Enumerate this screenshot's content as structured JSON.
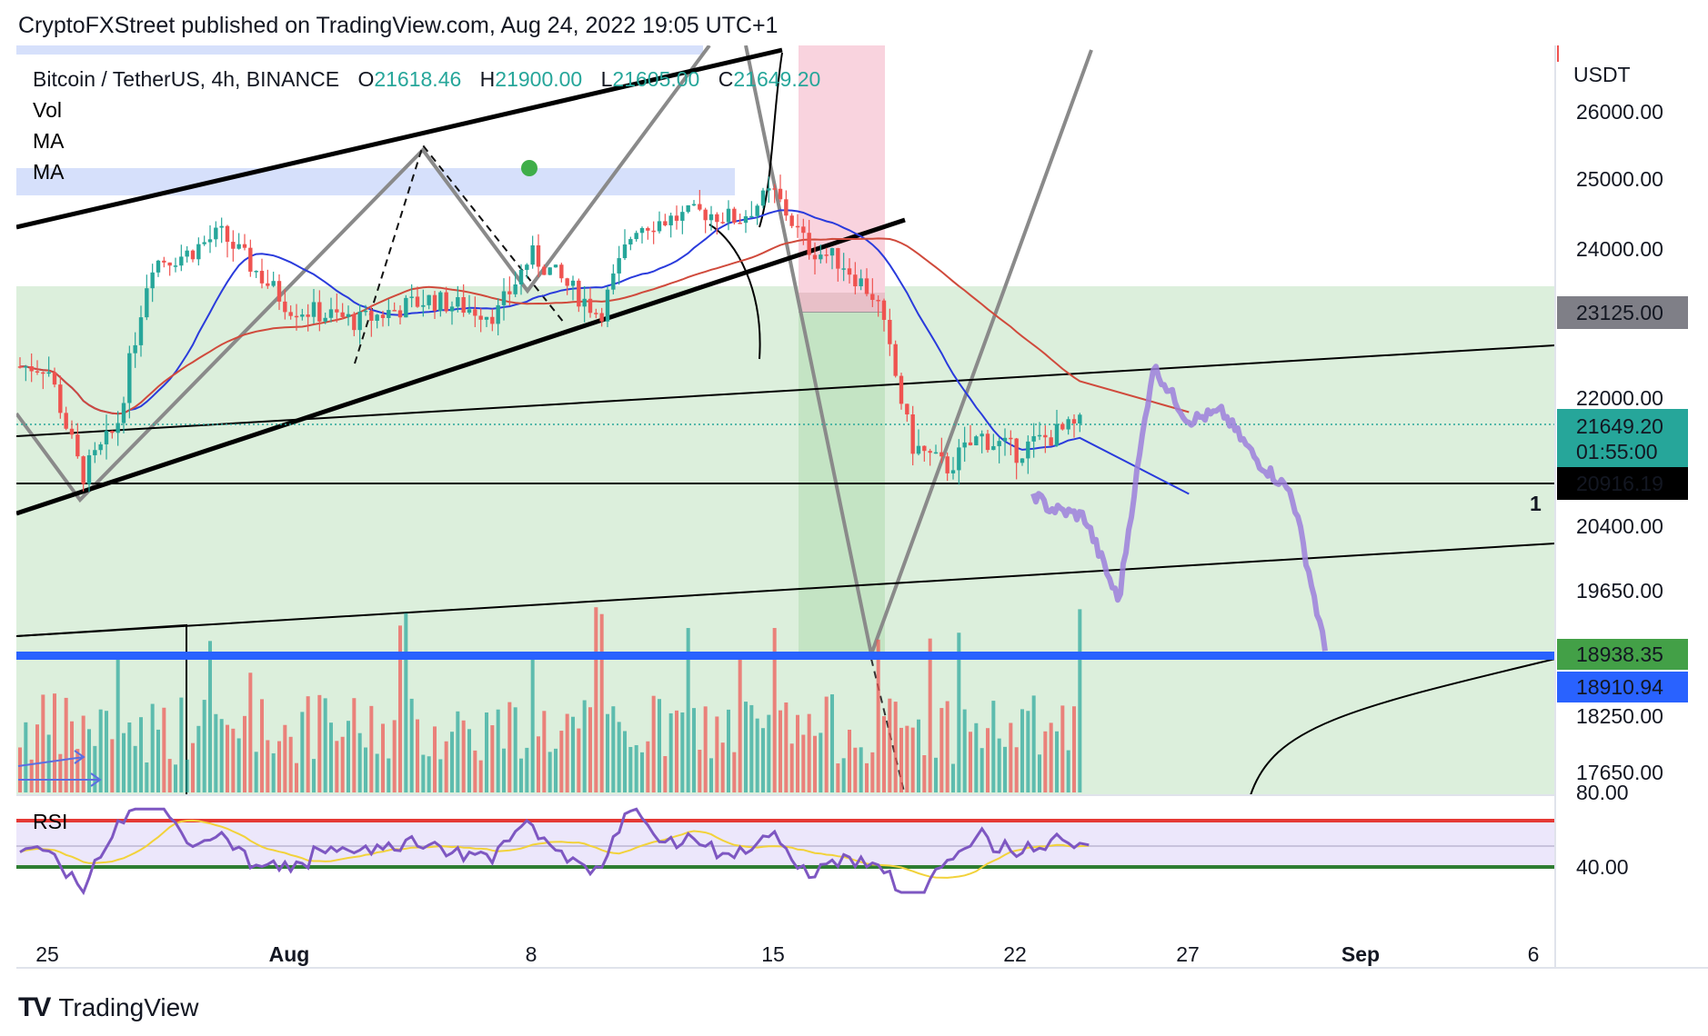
{
  "header": {
    "published": "CryptoFXStreet published on TradingView.com, Aug 24, 2022 19:05 UTC+1"
  },
  "legend": {
    "symbol": "Bitcoin / TetherUS, 4h, BINANCE",
    "open_label": "O",
    "open": "21618.46",
    "high_label": "H",
    "high": "21900.00",
    "low_label": "L",
    "low": "21605.00",
    "close_label": "C",
    "close": "21649.20",
    "indicators": [
      "Vol",
      "MA",
      "MA"
    ],
    "rsi_label": "RSI"
  },
  "price_axis": {
    "unit": "USDT",
    "ticks": [
      "26000.00",
      "25000.00",
      "24000.00",
      "22000.00",
      "20400.00",
      "19650.00",
      "18250.00",
      "17650.00"
    ],
    "rsi_ticks": [
      "80.00",
      "40.00"
    ],
    "marker_1": "1"
  },
  "badges": {
    "b23125": "23125.00",
    "last_price": "21649.20",
    "countdown": "01:55:00",
    "b20916": "20916.19",
    "b18938": "18938.35",
    "b18910": "18910.94"
  },
  "time_axis": {
    "ticks": [
      "25",
      "Aug",
      "8",
      "15",
      "22",
      "27",
      "Sep",
      "6"
    ]
  },
  "footer": {
    "brand": "TradingView",
    "logo_text": "TV"
  },
  "colors": {
    "bull": "#26a69a",
    "bear": "#ef5350",
    "ma_fast": "#2a3bdc",
    "ma_slow": "#d04a3c",
    "rsi": "#7e57c2",
    "rsi_ma": "#f2d23a",
    "zone_green": "#dcefdc",
    "zone_blue": "#d6e0fb",
    "support": "#2962ff",
    "projection": "#9c7fdc"
  },
  "chart_data": {
    "type": "candlestick",
    "symbol": "Bitcoin / TetherUS",
    "interval": "4h",
    "exchange": "BINANCE",
    "x_ticks": [
      "25",
      "Aug",
      "8",
      "15",
      "22",
      "27",
      "Sep",
      "6"
    ],
    "y_ticks": [
      26000,
      25000,
      24000,
      22000,
      20400,
      19650,
      18250,
      17650
    ],
    "price_path": [
      {
        "date": "2022-07-25",
        "price": 22400
      },
      {
        "date": "2022-07-26",
        "price": 21000
      },
      {
        "date": "2022-07-27",
        "price": 21600
      },
      {
        "date": "2022-07-28",
        "price": 23800
      },
      {
        "date": "2022-07-29",
        "price": 23900
      },
      {
        "date": "2022-07-30",
        "price": 24200
      },
      {
        "date": "2022-08-01",
        "price": 23200
      },
      {
        "date": "2022-08-03",
        "price": 23000
      },
      {
        "date": "2022-08-05",
        "price": 23300
      },
      {
        "date": "2022-08-07",
        "price": 23100
      },
      {
        "date": "2022-08-08",
        "price": 23900
      },
      {
        "date": "2022-08-10",
        "price": 23100
      },
      {
        "date": "2022-08-11",
        "price": 24300
      },
      {
        "date": "2022-08-13",
        "price": 24500
      },
      {
        "date": "2022-08-14",
        "price": 24400
      },
      {
        "date": "2022-08-15",
        "price": 24800
      },
      {
        "date": "2022-08-16",
        "price": 24000
      },
      {
        "date": "2022-08-17",
        "price": 23800
      },
      {
        "date": "2022-08-18",
        "price": 23300
      },
      {
        "date": "2022-08-19",
        "price": 21400
      },
      {
        "date": "2022-08-20",
        "price": 21100
      },
      {
        "date": "2022-08-21",
        "price": 21500
      },
      {
        "date": "2022-08-22",
        "price": 21300
      },
      {
        "date": "2022-08-23",
        "price": 21500
      },
      {
        "date": "2022-08-24",
        "price": 21649.2
      }
    ],
    "projection_path": [
      {
        "date": "2022-08-22",
        "price": 21000
      },
      {
        "date": "2022-08-23",
        "price": 20600
      },
      {
        "date": "2022-08-24",
        "price": 20500
      },
      {
        "date": "2022-08-25",
        "price": 19500
      },
      {
        "date": "2022-08-26",
        "price": 22400
      },
      {
        "date": "2022-08-27",
        "price": 21700
      },
      {
        "date": "2022-08-28",
        "price": 21800
      },
      {
        "date": "2022-08-29",
        "price": 21200
      },
      {
        "date": "2022-08-30",
        "price": 20800
      },
      {
        "date": "2022-08-31",
        "price": 18910
      }
    ],
    "levels": [
      {
        "label": "23125.00",
        "price": 23125
      },
      {
        "label": "20916.19",
        "price": 20916.19
      },
      {
        "label": "18938.35",
        "price": 18938.35
      },
      {
        "label": "18910.94",
        "price": 18910.94
      }
    ],
    "last_close": 21649.2,
    "rsi": {
      "overbought": 80,
      "oversold": 40,
      "last": 59
    }
  }
}
